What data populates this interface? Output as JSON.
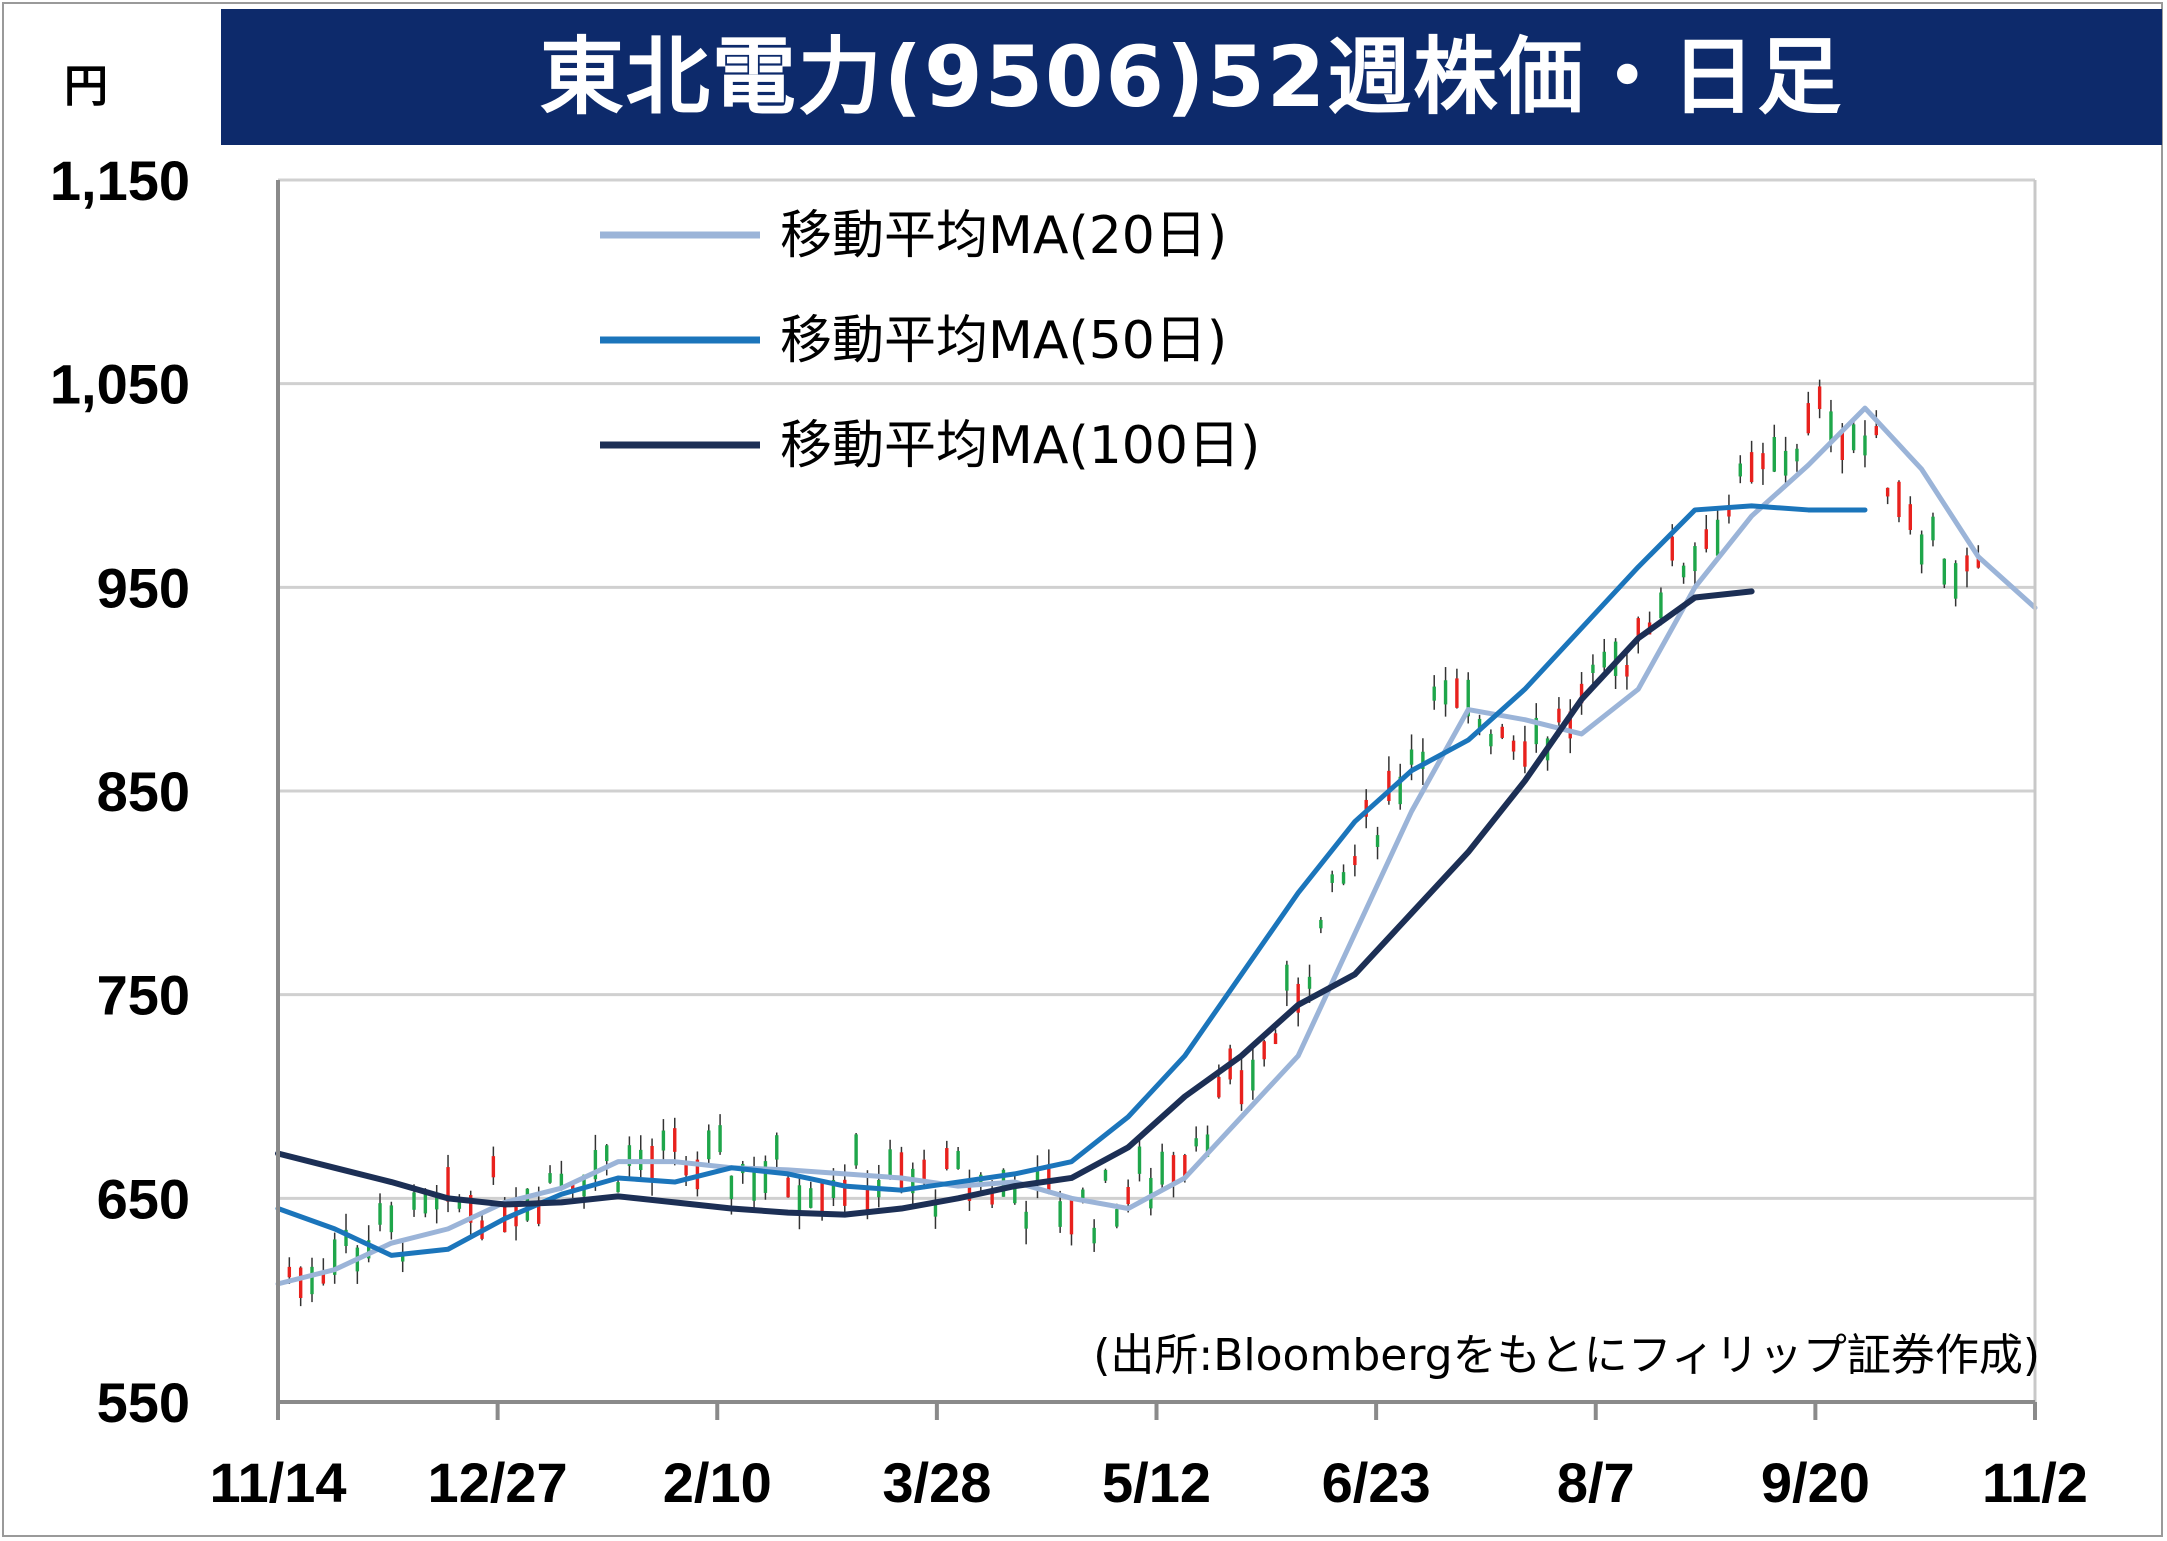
{
  "header": {
    "title": "東北電力(9506)52週株価・日足",
    "unit": "円"
  },
  "source_note": "(出所:Bloombergをもとにフィリップ証券作成)",
  "colors": {
    "title_bg": "#0d2a6b",
    "up": "#e8211d",
    "down": "#1fa64a",
    "ma20": "#9bb4d8",
    "ma50": "#1b75bb",
    "ma100": "#1c2f55",
    "grid": "#d0d0d0"
  },
  "chart_data": {
    "type": "candlestick",
    "title": "東北電力(9506)52週株価・日足",
    "ylabel": "円",
    "ylim": [
      550,
      1150
    ],
    "yticks": [
      550,
      650,
      750,
      850,
      950,
      1050,
      1150
    ],
    "ytick_labels": [
      "550",
      "650",
      "750",
      "850",
      "950",
      "1,050",
      "1,150"
    ],
    "xticks": [
      "11/14",
      "12/27",
      "2/10",
      "3/28",
      "5/12",
      "6/23",
      "8/7",
      "9/20",
      "11/2"
    ],
    "grid": true,
    "legend_position": "top-left",
    "series": [
      {
        "name": "移動平均MA(20日)",
        "key": "ma20",
        "points": [
          [
            0,
            608
          ],
          [
            10,
            615
          ],
          [
            20,
            628
          ],
          [
            30,
            635
          ],
          [
            40,
            648
          ],
          [
            50,
            655
          ],
          [
            60,
            668
          ],
          [
            70,
            668
          ],
          [
            80,
            665
          ],
          [
            90,
            664
          ],
          [
            100,
            662
          ],
          [
            110,
            660
          ],
          [
            120,
            656
          ],
          [
            130,
            658
          ],
          [
            140,
            650
          ],
          [
            150,
            645
          ],
          [
            160,
            660
          ],
          [
            170,
            690
          ],
          [
            180,
            720
          ],
          [
            190,
            780
          ],
          [
            200,
            840
          ],
          [
            210,
            890
          ],
          [
            220,
            885
          ],
          [
            230,
            878
          ],
          [
            240,
            900
          ],
          [
            250,
            950
          ],
          [
            260,
            985
          ],
          [
            270,
            1010
          ],
          [
            280,
            1038
          ],
          [
            290,
            1008
          ],
          [
            300,
            965
          ],
          [
            310,
            940
          ]
        ]
      },
      {
        "name": "移動平均MA(50日)",
        "key": "ma50",
        "points": [
          [
            0,
            645
          ],
          [
            10,
            635
          ],
          [
            20,
            622
          ],
          [
            30,
            625
          ],
          [
            40,
            640
          ],
          [
            50,
            652
          ],
          [
            60,
            660
          ],
          [
            70,
            658
          ],
          [
            80,
            665
          ],
          [
            90,
            662
          ],
          [
            100,
            656
          ],
          [
            110,
            654
          ],
          [
            120,
            658
          ],
          [
            130,
            662
          ],
          [
            140,
            668
          ],
          [
            150,
            690
          ],
          [
            160,
            720
          ],
          [
            170,
            760
          ],
          [
            180,
            800
          ],
          [
            190,
            835
          ],
          [
            200,
            860
          ],
          [
            210,
            875
          ],
          [
            220,
            900
          ],
          [
            230,
            930
          ],
          [
            240,
            960
          ],
          [
            250,
            988
          ],
          [
            260,
            990
          ],
          [
            270,
            988
          ],
          [
            280,
            988
          ]
        ]
      },
      {
        "name": "移動平均MA(100日)",
        "key": "ma100",
        "points": [
          [
            0,
            672
          ],
          [
            10,
            665
          ],
          [
            20,
            658
          ],
          [
            30,
            650
          ],
          [
            40,
            647
          ],
          [
            50,
            648
          ],
          [
            60,
            651
          ],
          [
            70,
            648
          ],
          [
            80,
            645
          ],
          [
            90,
            643
          ],
          [
            100,
            642
          ],
          [
            110,
            645
          ],
          [
            120,
            650
          ],
          [
            130,
            656
          ],
          [
            140,
            660
          ],
          [
            150,
            675
          ],
          [
            160,
            700
          ],
          [
            170,
            720
          ],
          [
            180,
            745
          ],
          [
            190,
            760
          ],
          [
            200,
            790
          ],
          [
            210,
            820
          ],
          [
            220,
            855
          ],
          [
            230,
            895
          ],
          [
            240,
            925
          ],
          [
            250,
            945
          ],
          [
            260,
            948
          ]
        ]
      }
    ]
  }
}
